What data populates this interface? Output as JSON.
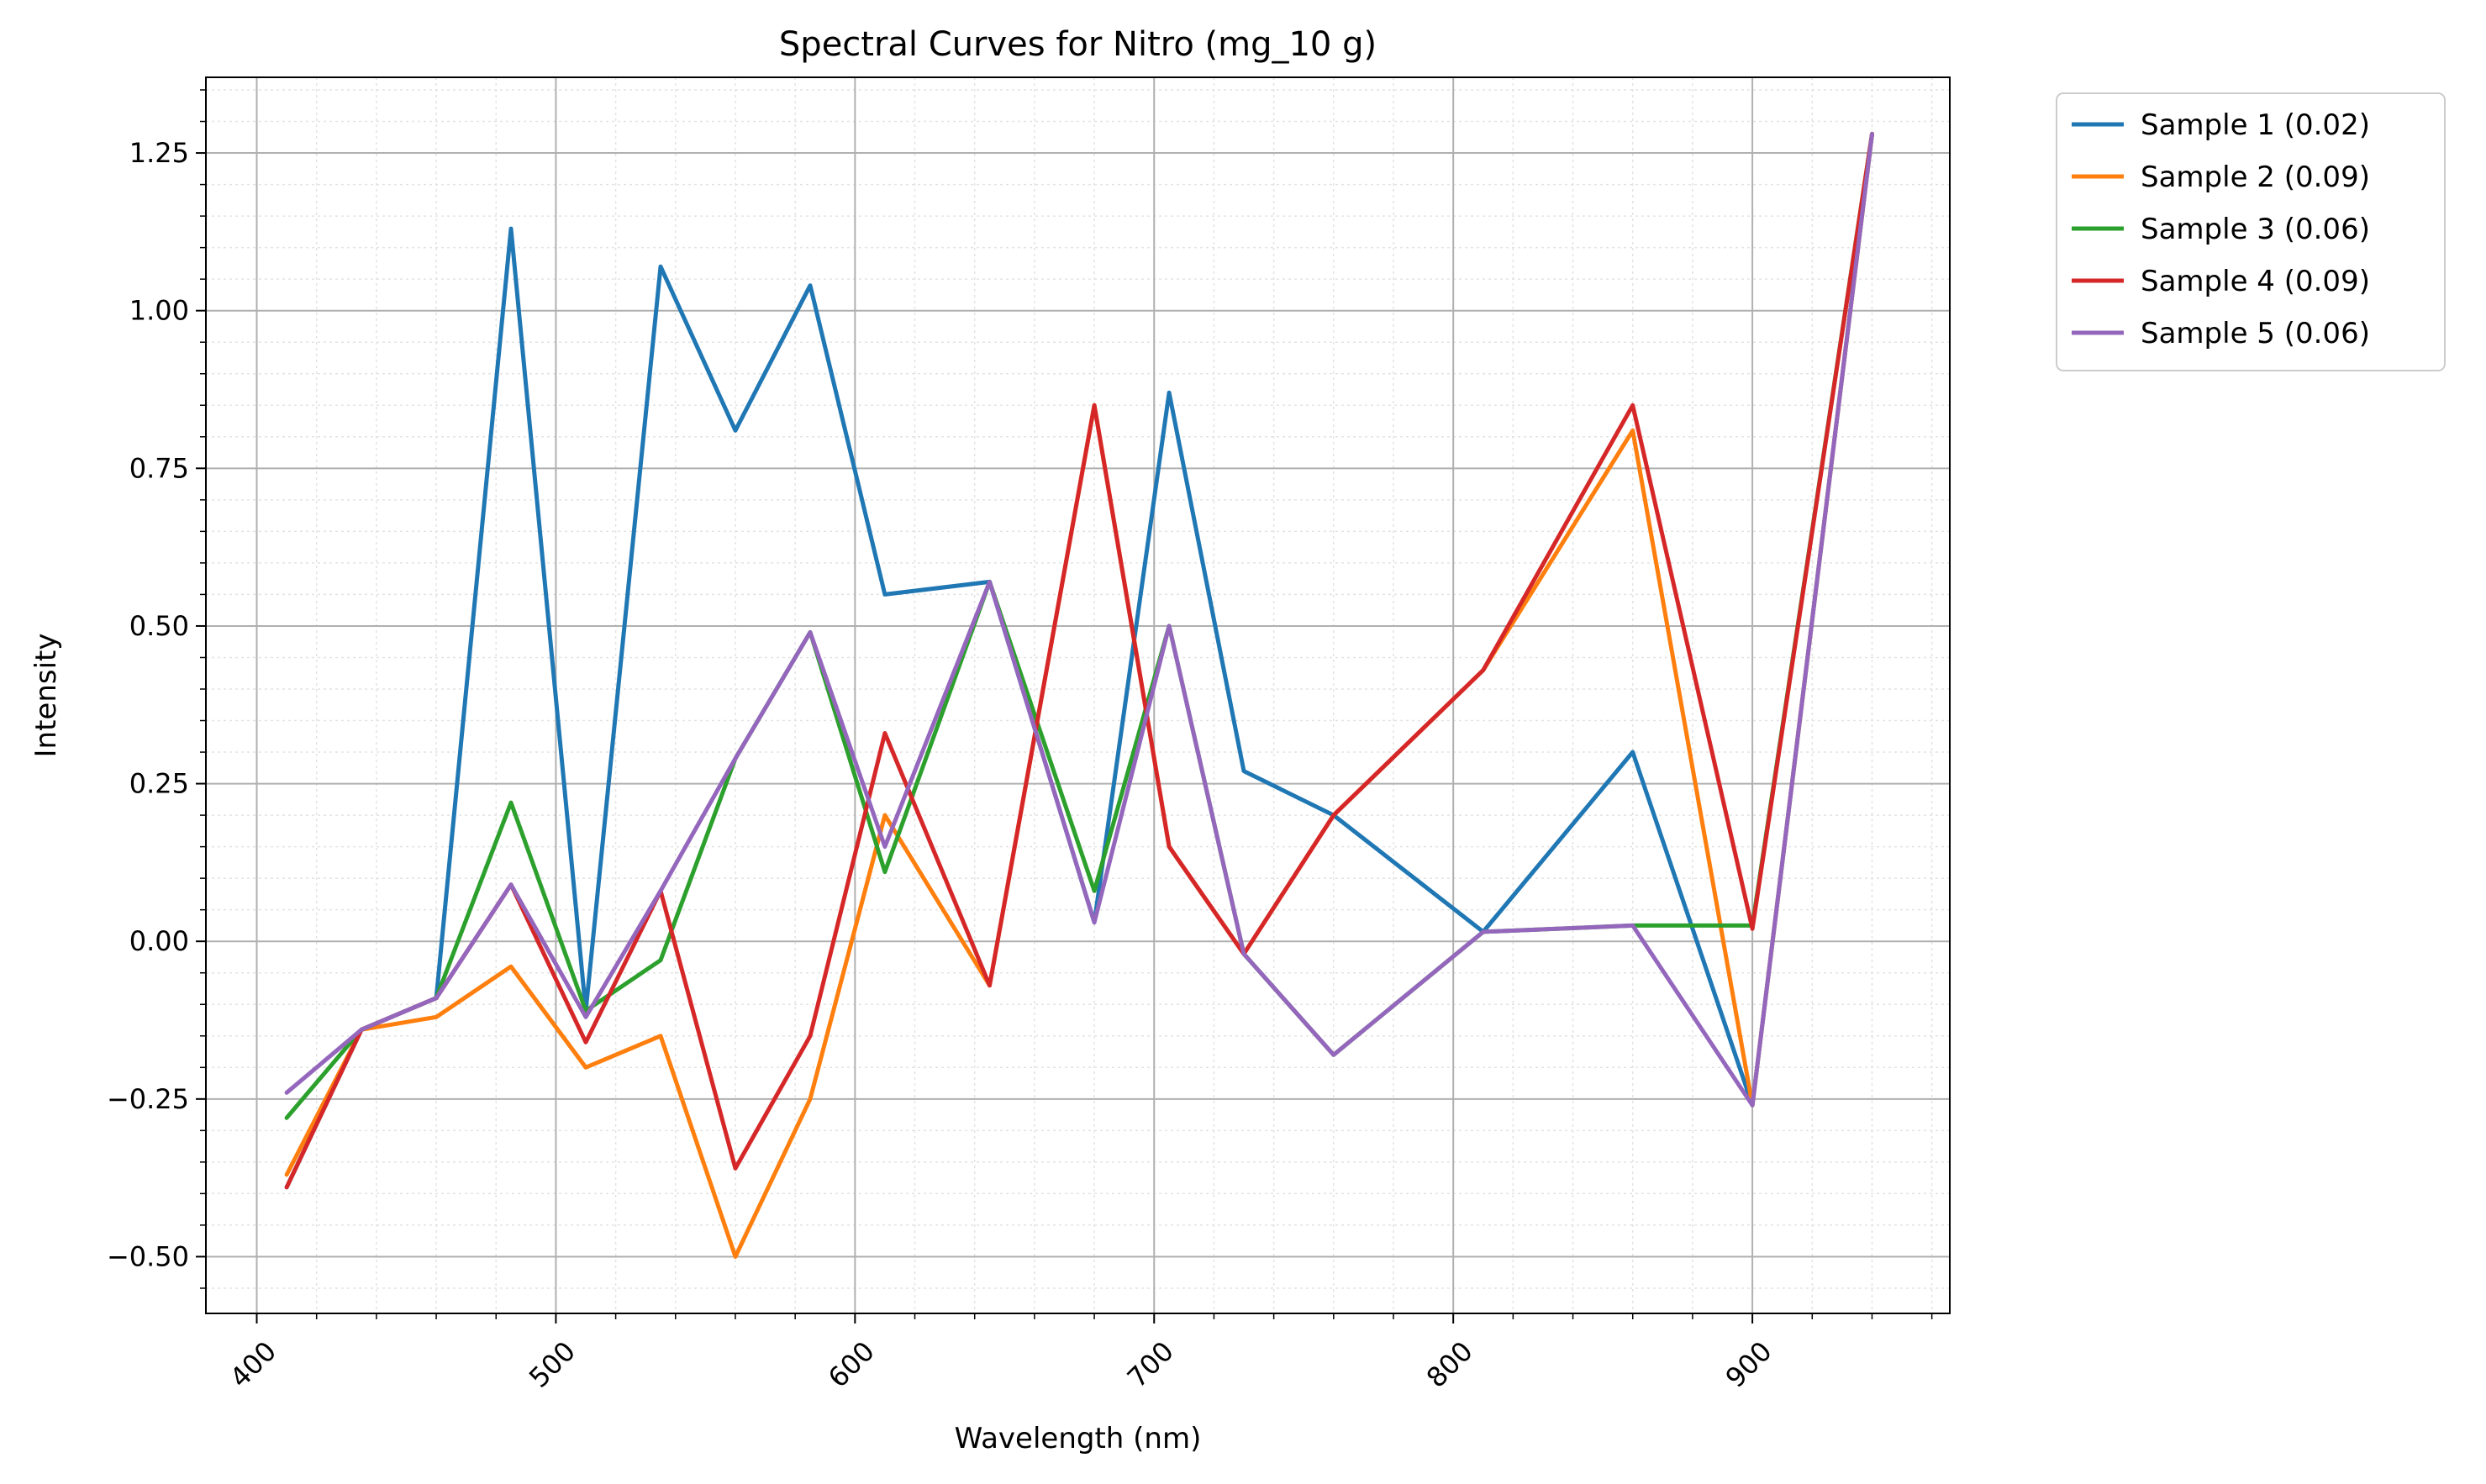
{
  "chart_data": {
    "type": "line",
    "title": "Spectral Curves for Nitro (mg_10 g)",
    "xlabel": "Wavelength (nm)",
    "ylabel": "Intensity",
    "xlim": [
      383,
      966
    ],
    "ylim": [
      -0.59,
      1.37
    ],
    "xticks": [
      400,
      500,
      600,
      700,
      800,
      900
    ],
    "yticks": [
      -0.5,
      -0.25,
      0.0,
      0.25,
      0.5,
      0.75,
      1.0,
      1.25
    ],
    "ytick_labels": [
      "−0.50",
      "−0.25",
      "0.00",
      "0.25",
      "0.50",
      "0.75",
      "1.00",
      "1.25"
    ],
    "grid": true,
    "minor_grid": true,
    "legend_position": "outside-top-right",
    "x": [
      410,
      435,
      460,
      485,
      510,
      535,
      560,
      585,
      610,
      645,
      680,
      705,
      730,
      760,
      810,
      860,
      900,
      940
    ],
    "series": [
      {
        "name": "Sample 1 (0.02)",
        "color": "#1f77b4",
        "values": [
          -0.39,
          -0.14,
          -0.09,
          1.13,
          -0.11,
          1.07,
          0.81,
          1.04,
          0.55,
          0.57,
          0.03,
          0.87,
          0.27,
          0.2,
          0.015,
          0.3,
          -0.26,
          1.28
        ]
      },
      {
        "name": "Sample 2 (0.09)",
        "color": "#ff7f0e",
        "values": [
          -0.37,
          -0.14,
          -0.12,
          -0.04,
          -0.2,
          -0.15,
          -0.5,
          -0.25,
          0.2,
          -0.07,
          0.85,
          0.15,
          -0.02,
          0.2,
          0.43,
          0.81,
          -0.26,
          1.28
        ]
      },
      {
        "name": "Sample 3 (0.06)",
        "color": "#2ca02c",
        "values": [
          -0.28,
          -0.14,
          -0.09,
          0.22,
          -0.11,
          -0.03,
          0.29,
          0.49,
          0.11,
          0.57,
          0.08,
          0.5,
          -0.02,
          -0.18,
          0.015,
          0.025,
          0.025,
          1.28
        ]
      },
      {
        "name": "Sample 4 (0.09)",
        "color": "#d62728",
        "values": [
          -0.39,
          -0.14,
          -0.09,
          0.09,
          -0.16,
          0.08,
          -0.36,
          -0.15,
          0.33,
          -0.07,
          0.85,
          0.15,
          -0.02,
          0.2,
          0.43,
          0.85,
          0.02,
          1.28
        ]
      },
      {
        "name": "Sample 5 (0.06)",
        "color": "#9467bd",
        "values": [
          -0.24,
          -0.14,
          -0.09,
          0.09,
          -0.12,
          0.08,
          0.29,
          0.49,
          0.15,
          0.57,
          0.03,
          0.5,
          -0.02,
          -0.18,
          0.015,
          0.025,
          -0.26,
          1.28
        ]
      }
    ]
  }
}
